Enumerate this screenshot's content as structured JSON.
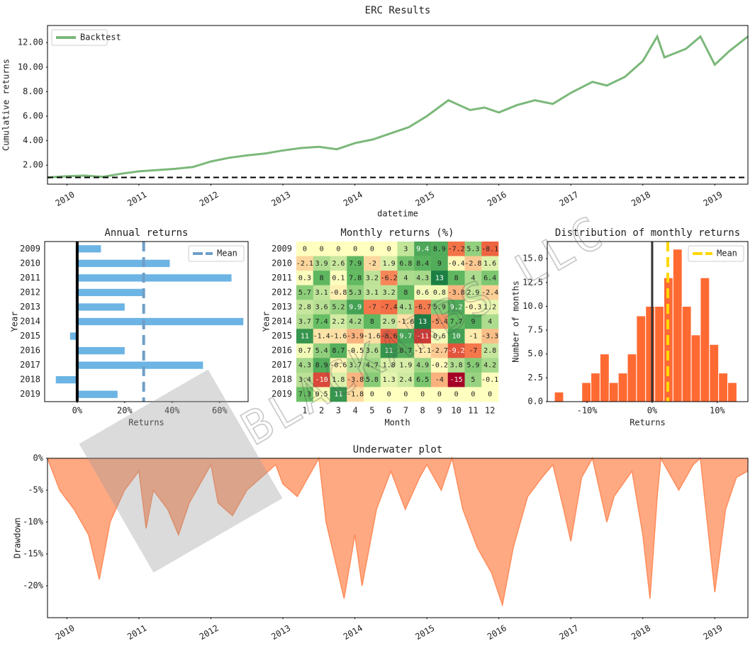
{
  "watermark": "BLACKARBS LLC",
  "chart_data": [
    {
      "type": "line",
      "title": "ERC Results",
      "xlabel": "datetime",
      "ylabel": "Cumulative returns",
      "xlim": [
        2009.73,
        2019.46
      ],
      "xticks": [
        2010,
        2011,
        2012,
        2013,
        2014,
        2015,
        2016,
        2017,
        2018,
        2019
      ],
      "ylim": [
        0.45,
        13.4
      ],
      "yticks": [
        {
          "value": 2,
          "label": "2.00"
        },
        {
          "value": 4,
          "label": "4.00"
        },
        {
          "value": 6,
          "label": "6.00"
        },
        {
          "value": 8,
          "label": "8.00"
        },
        {
          "value": 10,
          "label": "10.00"
        },
        {
          "value": 12,
          "label": "12.00"
        }
      ],
      "hline": 1,
      "legend": "upper left",
      "series": [
        {
          "name": "Backtest",
          "color": "#7bb87a",
          "x": [
            2009.73,
            2010.0,
            2010.25,
            2010.5,
            2010.75,
            2011.0,
            2011.25,
            2011.5,
            2011.75,
            2012.0,
            2012.25,
            2012.5,
            2012.75,
            2013.0,
            2013.25,
            2013.5,
            2013.75,
            2014.0,
            2014.25,
            2014.5,
            2014.75,
            2015.0,
            2015.3,
            2015.6,
            2015.8,
            2016.0,
            2016.25,
            2016.5,
            2016.75,
            2017.0,
            2017.3,
            2017.5,
            2017.75,
            2018.0,
            2018.2,
            2018.3,
            2018.6,
            2018.8,
            2019.0,
            2019.2,
            2019.46
          ],
          "values": [
            1.0,
            1.1,
            1.15,
            1.05,
            1.3,
            1.5,
            1.6,
            1.7,
            1.85,
            2.3,
            2.6,
            2.8,
            2.95,
            3.2,
            3.4,
            3.5,
            3.3,
            3.8,
            4.1,
            4.6,
            5.1,
            6.0,
            7.3,
            6.5,
            6.7,
            6.3,
            6.9,
            7.3,
            7.0,
            7.9,
            8.8,
            8.5,
            9.2,
            10.5,
            12.5,
            10.8,
            11.5,
            12.5,
            10.2,
            11.3,
            12.5
          ]
        }
      ]
    },
    {
      "type": "barh",
      "title": "Annual returns",
      "xlabel": "Returns",
      "ylabel": "Year",
      "categories": [
        "2009",
        "2010",
        "2011",
        "2012",
        "2013",
        "2014",
        "2015",
        "2016",
        "2017",
        "2018",
        "2019"
      ],
      "values": [
        10,
        39,
        65,
        28,
        20,
        70,
        -3,
        20,
        53,
        -9,
        17
      ],
      "color": "#6cb4e4",
      "xlim": [
        -13.7,
        72
      ],
      "xticks": [
        {
          "value": 0,
          "label": "0%"
        },
        {
          "value": 20,
          "label": "20%"
        },
        {
          "value": 40,
          "label": "40%"
        },
        {
          "value": 60,
          "label": "60%"
        }
      ],
      "mean": {
        "name": "Mean",
        "value": 28,
        "color": "#6e9fc8"
      },
      "legend": "upper right"
    },
    {
      "type": "heatmap",
      "title": "Monthly returns (%)",
      "xlabel": "Month",
      "ylabel": "Year",
      "rows": [
        "2009",
        "2010",
        "2011",
        "2012",
        "2013",
        "2014",
        "2015",
        "2016",
        "2017",
        "2018",
        "2019"
      ],
      "columns": [
        1,
        2,
        3,
        4,
        5,
        6,
        7,
        8,
        9,
        10,
        11,
        12
      ],
      "values": [
        [
          0,
          0,
          0,
          0,
          0,
          0,
          3,
          9.4,
          8.9,
          -7.2,
          5.3,
          -8.1
        ],
        [
          -2.1,
          3.9,
          2.6,
          7.9,
          -2,
          1.9,
          6.8,
          8.4,
          9,
          -0.4,
          -2.8,
          1.6
        ],
        [
          0.3,
          8,
          0.1,
          7.8,
          3.2,
          -6.2,
          4,
          4.3,
          13,
          8,
          4,
          6.4
        ],
        [
          5.7,
          3.1,
          -0.8,
          5.3,
          3.1,
          3.2,
          8,
          0.6,
          0.8,
          -3.8,
          2.9,
          -2.4
        ],
        [
          2.8,
          3.6,
          5.2,
          9.9,
          -7,
          -7.4,
          4.1,
          -6.7,
          5.9,
          9.2,
          -0.3,
          1.2
        ],
        [
          3.7,
          7.4,
          2.2,
          4.2,
          8,
          2.9,
          -1.6,
          13,
          -5.4,
          7.7,
          9,
          4
        ],
        [
          11,
          -1.4,
          -1.6,
          -3.9,
          -1.6,
          -8.6,
          9.7,
          -11,
          0.6,
          10,
          -1,
          -3.3
        ],
        [
          0.7,
          5.4,
          8.7,
          -0.5,
          3.6,
          11,
          8.7,
          -1.1,
          -2.7,
          -9.2,
          -7,
          2.8
        ],
        [
          4.3,
          8.9,
          -0.6,
          3.7,
          4.7,
          1.8,
          1.9,
          4.9,
          -0.2,
          3.8,
          5.9,
          4.2
        ],
        [
          3.4,
          -10,
          1.8,
          -3.8,
          5.8,
          1.3,
          2.4,
          6.5,
          -4,
          -15,
          5,
          -0.1
        ],
        [
          7.3,
          0.5,
          11,
          -1.8,
          0,
          0,
          0,
          0,
          0,
          0,
          0,
          0
        ]
      ]
    },
    {
      "type": "histogram",
      "title": "Distribution of monthly returns",
      "xlabel": "Returns",
      "ylabel": "Number of months",
      "bins": [
        -15,
        -13.6,
        -12.2,
        -10.8,
        -9.4,
        -8,
        -6.6,
        -5.2,
        -3.8,
        -2.4,
        -1,
        0.4,
        1.8,
        3.2,
        4.6,
        6,
        7.4,
        8.8,
        10.2,
        11.6,
        13
      ],
      "counts": [
        1,
        0,
        0,
        2,
        3,
        5,
        2,
        3,
        5,
        9,
        10,
        10,
        13,
        16,
        10,
        7,
        13,
        6,
        3,
        2
      ],
      "color": "#ff6a33",
      "xlim": [
        -16.1,
        14.7
      ],
      "xticks": [
        {
          "value": -10,
          "label": "-10%"
        },
        {
          "value": 0,
          "label": "0%"
        },
        {
          "value": 10,
          "label": "10%"
        }
      ],
      "ylim": [
        0,
        16.8
      ],
      "yticks": [
        {
          "value": 0,
          "label": "0.0"
        },
        2.5,
        {
          "value": 5,
          "label": "5.0"
        },
        7.5,
        {
          "value": 10,
          "label": "10.0"
        },
        12.5,
        {
          "value": 15,
          "label": "15.0"
        }
      ],
      "mean": {
        "name": "Mean",
        "value": 2.4,
        "color": "#ffd700"
      },
      "legend": "upper right"
    },
    {
      "type": "area",
      "title": "Underwater plot",
      "ylabel": "Drawdown",
      "color": "#ff8c5a",
      "xlim": [
        2009.73,
        2019.46
      ],
      "xticks": [
        2010,
        2011,
        2012,
        2013,
        2014,
        2015,
        2016,
        2017,
        2018,
        2019
      ],
      "ylim": [
        -25,
        0
      ],
      "yticks": [
        {
          "value": 0,
          "label": "0%"
        },
        {
          "value": -5,
          "label": "-5%"
        },
        {
          "value": -10,
          "label": "-10%"
        },
        {
          "value": -15,
          "label": "-15%"
        },
        {
          "value": -20,
          "label": "-20%"
        }
      ],
      "x": [
        2009.73,
        2009.9,
        2010.1,
        2010.3,
        2010.45,
        2010.6,
        2010.8,
        2011.0,
        2011.1,
        2011.2,
        2011.4,
        2011.55,
        2011.7,
        2011.9,
        2012.0,
        2012.1,
        2012.3,
        2012.5,
        2012.7,
        2012.9,
        2013.0,
        2013.2,
        2013.4,
        2013.5,
        2013.6,
        2013.85,
        2014.0,
        2014.1,
        2014.3,
        2014.5,
        2014.7,
        2014.9,
        2015.0,
        2015.2,
        2015.35,
        2015.5,
        2015.7,
        2015.9,
        2016.05,
        2016.2,
        2016.4,
        2016.6,
        2016.75,
        2016.9,
        2017.0,
        2017.15,
        2017.3,
        2017.5,
        2017.6,
        2017.85,
        2018.0,
        2018.1,
        2018.2,
        2018.25,
        2018.5,
        2018.7,
        2018.8,
        2019.0,
        2019.15,
        2019.3,
        2019.46
      ],
      "values": [
        0,
        -5,
        -8,
        -12,
        -19,
        -10,
        -5,
        -2,
        -11,
        -5,
        -8,
        -12,
        -7,
        -3,
        -1,
        -7,
        -9,
        -5,
        -3,
        -1,
        -4,
        -6,
        -2,
        0,
        -10,
        -22,
        -12,
        -20,
        -8,
        -2,
        -8,
        -3,
        -1,
        -5,
        0,
        -8,
        -14,
        -18,
        -23,
        -14,
        -6,
        -3,
        -1,
        -8,
        -13,
        -3,
        0,
        -10,
        -6,
        -2,
        -12,
        -22,
        -6,
        0,
        -5,
        -1,
        0,
        -21,
        -8,
        -3,
        -2
      ]
    }
  ]
}
